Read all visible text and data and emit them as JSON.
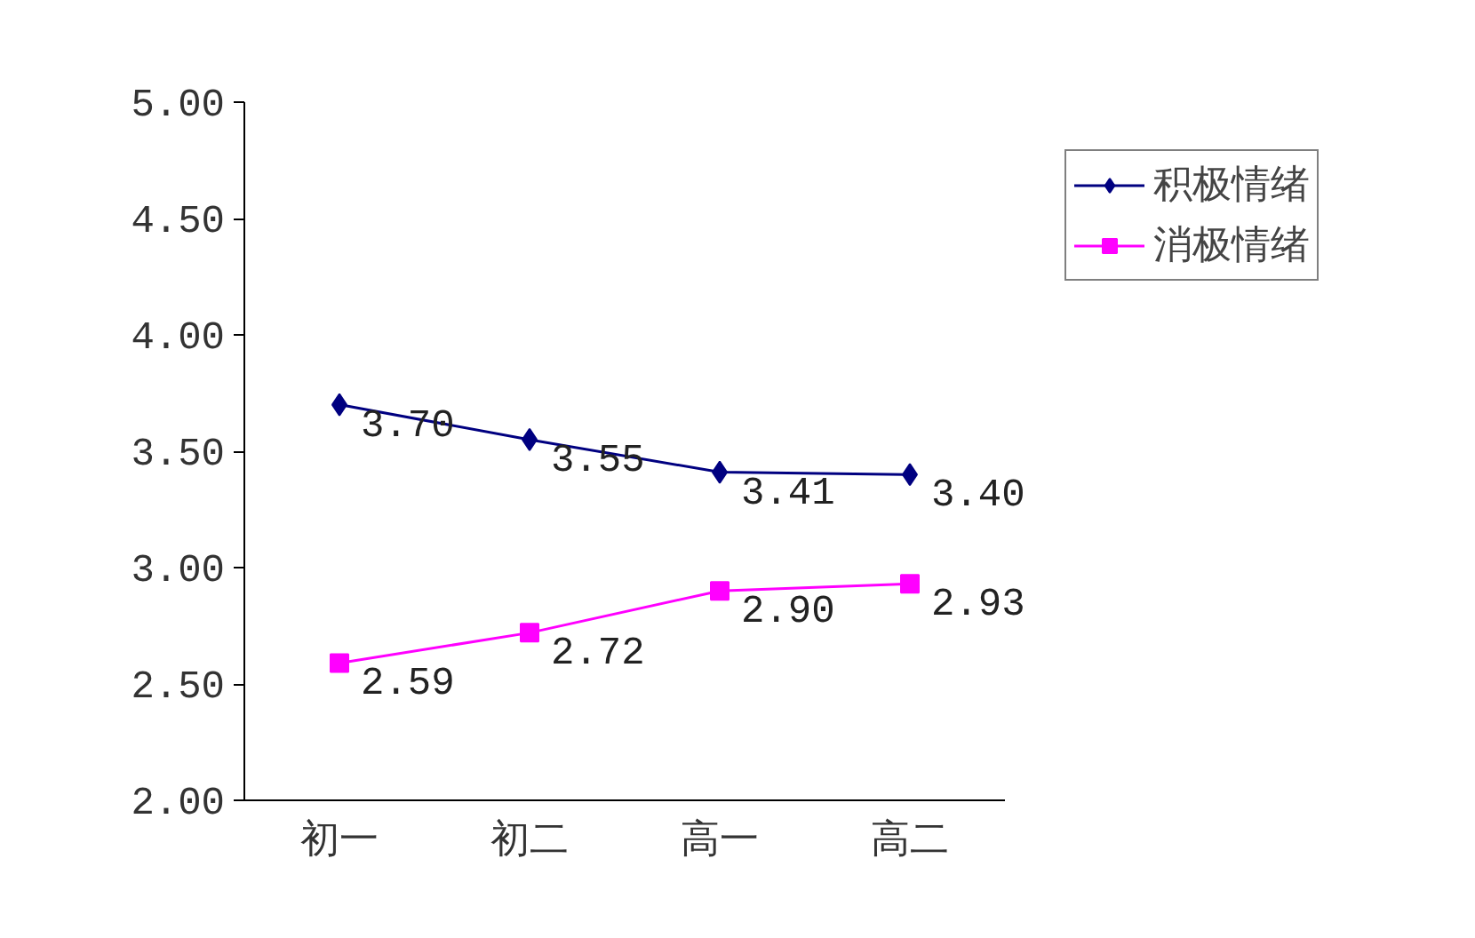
{
  "chart_data": {
    "type": "line",
    "categories": [
      "初一",
      "初二",
      "高一",
      "高二"
    ],
    "series": [
      {
        "name": "积极情绪",
        "color": "#000080",
        "marker": "diamond",
        "values": [
          3.7,
          3.55,
          3.41,
          3.4
        ],
        "value_labels": [
          "3.70",
          "3.55",
          "3.41",
          "3.40"
        ]
      },
      {
        "name": "消极情绪",
        "color": "#ff00ff",
        "marker": "square",
        "values": [
          2.59,
          2.72,
          2.9,
          2.93
        ],
        "value_labels": [
          "2.59",
          "2.72",
          "2.90",
          "2.93"
        ]
      }
    ],
    "ylim": [
      2,
      5
    ],
    "yticks": [
      {
        "value": 2,
        "label": "2.00"
      },
      {
        "value": 2.5,
        "label": "2.50"
      },
      {
        "value": 3,
        "label": "3.00"
      },
      {
        "value": 3.5,
        "label": "3.50"
      },
      {
        "value": 4,
        "label": "4.00"
      },
      {
        "value": 4.5,
        "label": "4.50"
      },
      {
        "value": 5,
        "label": "5.00"
      }
    ],
    "grid": false,
    "legend": "top right",
    "line_style": "solid"
  }
}
